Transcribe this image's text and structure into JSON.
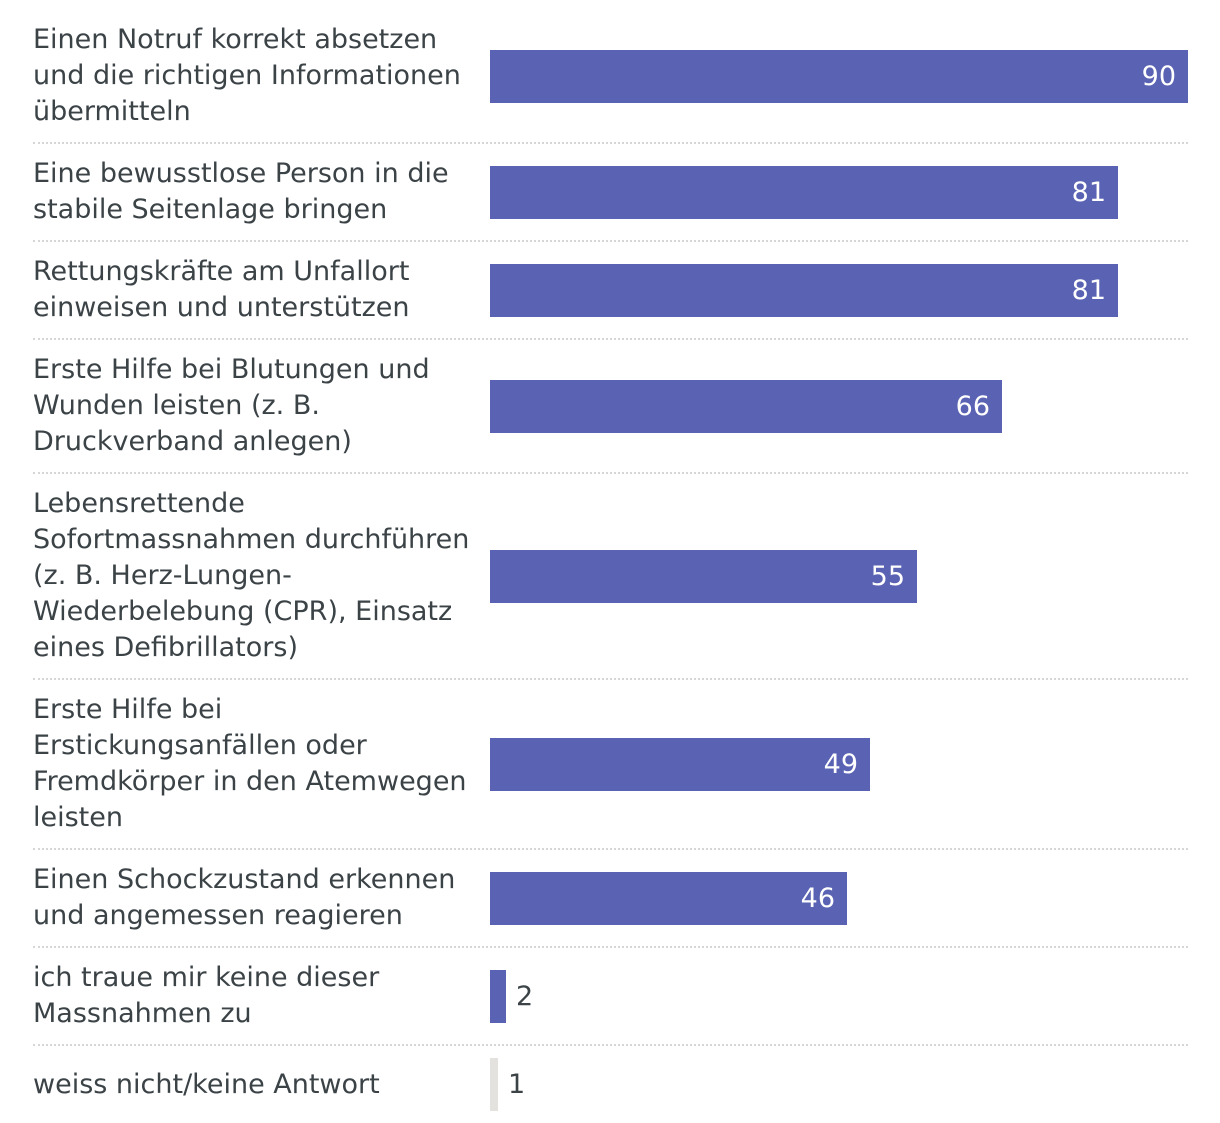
{
  "chart_data": {
    "type": "bar",
    "orientation": "horizontal",
    "categories": [
      [
        "Einen Notruf korrekt absetzen",
        "und die richtigen Informationen",
        "übermitteln"
      ],
      [
        "Eine bewusstlose Person in die",
        "stabile Seitenlage bringen"
      ],
      [
        "Rettungskräfte am Unfallort",
        "einweisen und unterstützen"
      ],
      [
        "Erste Hilfe bei Blutungen und",
        "Wunden leisten (z. B.",
        "Druckverband anlegen)"
      ],
      [
        "Lebensrettende",
        "Sofortmassnahmen durchführen",
        "(z. B. Herz-Lungen-",
        "Wiederbelebung (CPR), Einsatz",
        "eines Defibrillators)"
      ],
      [
        "Erste Hilfe bei",
        "Erstickungsanfällen oder",
        "Fremdkörper in den Atemwegen",
        "leisten"
      ],
      [
        "Einen Schockzustand erkennen",
        "und angemessen reagieren"
      ],
      [
        "ich traue mir keine dieser",
        "Massnahmen zu"
      ],
      [
        "weiss nicht/keine Antwort"
      ]
    ],
    "values": [
      90,
      81,
      81,
      66,
      55,
      49,
      46,
      2,
      1
    ],
    "bar_colors": [
      "#5a63b3",
      "#5a63b3",
      "#5a63b3",
      "#5a63b3",
      "#5a63b3",
      "#5a63b3",
      "#5a63b3",
      "#5a63b3",
      "#e4e2df"
    ],
    "xlim": [
      0,
      90
    ],
    "grid": false,
    "legend": "none",
    "title": "",
    "xlabel": "",
    "ylabel": ""
  }
}
